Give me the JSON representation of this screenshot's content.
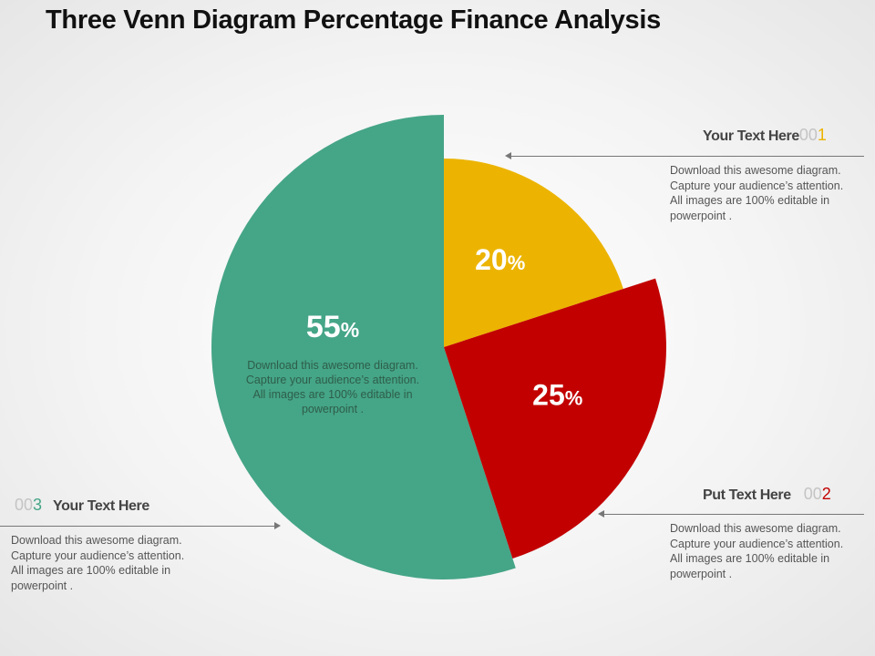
{
  "title": "Three Venn Diagram Percentage Finance Analysis",
  "colors": {
    "green": "#45a587",
    "yellow": "#ecb400",
    "red": "#c20000"
  },
  "chart_data": {
    "type": "pie",
    "values": [
      55,
      20,
      25
    ],
    "labels": [
      "55%",
      "20%",
      "25%"
    ],
    "colors": [
      "#45a587",
      "#ecb400",
      "#c20000"
    ]
  },
  "center_text": {
    "line1": "Download this awesome diagram.",
    "line2": "Capture your audience’s attention.",
    "line3": "All images are 100% editable in",
    "line4": "powerpoint ."
  },
  "callouts": {
    "c1": {
      "heading": "Your Text Here",
      "num_prefix": "00",
      "num_digit": "1",
      "num_color": "#ecb400",
      "line1": "Download this awesome diagram.",
      "line2": "Capture your audience’s attention.",
      "line3": "All images are 100% editable in",
      "line4": "powerpoint ."
    },
    "c2": {
      "heading": "Put Text Here",
      "num_prefix": "00",
      "num_digit": "2",
      "num_color": "#c20000",
      "line1": "Download this awesome diagram.",
      "line2": "Capture your audience’s attention.",
      "line3": "All images are 100% editable in",
      "line4": "powerpoint ."
    },
    "c3": {
      "heading": "Your Text Here",
      "num_prefix": "00",
      "num_digit": "3",
      "num_color": "#45a587",
      "line1": "Download this awesome diagram.",
      "line2": "Capture your audience’s attention.",
      "line3": "All images are 100% editable in",
      "line4": "powerpoint ."
    }
  }
}
